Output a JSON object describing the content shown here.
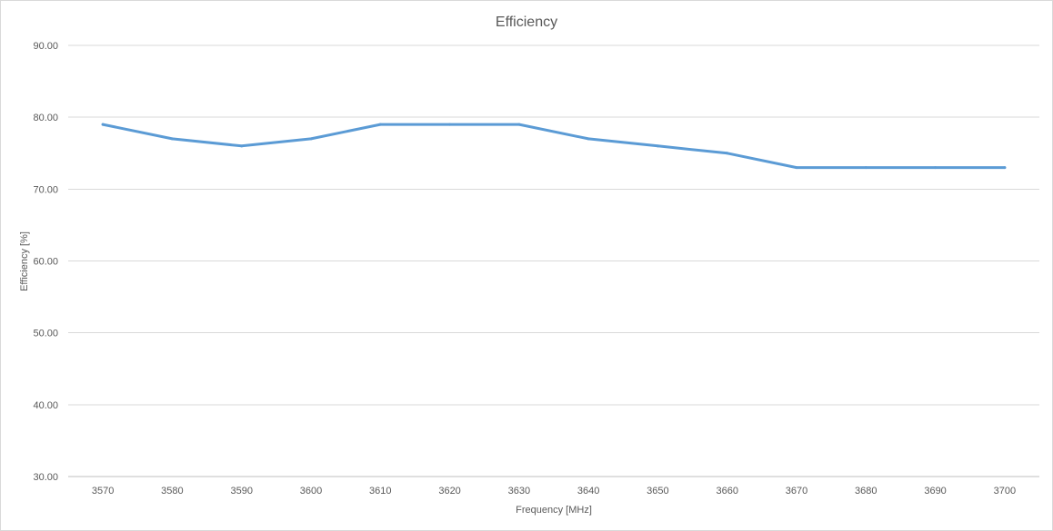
{
  "chart_data": {
    "type": "line",
    "title": "Efficiency",
    "xlabel": "Frequency [MHz]",
    "ylabel": "Efficiency [%]",
    "categories": [
      "3570",
      "3580",
      "3590",
      "3600",
      "3610",
      "3620",
      "3630",
      "3640",
      "3650",
      "3660",
      "3670",
      "3680",
      "3690",
      "3700"
    ],
    "ytick_labels": [
      "30.00",
      "40.00",
      "50.00",
      "60.00",
      "70.00",
      "80.00",
      "90.00"
    ],
    "ylim": [
      30,
      90
    ],
    "grid": "horizontal",
    "legend": "none",
    "series": [
      {
        "color": "#5b9bd5",
        "values": [
          79,
          77,
          76,
          77,
          79,
          79,
          79,
          77,
          76,
          75,
          73,
          73,
          73,
          73
        ]
      }
    ]
  }
}
